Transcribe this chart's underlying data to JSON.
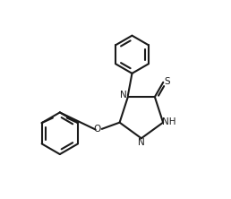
{
  "bg_color": "#ffffff",
  "line_color": "#1a1a1a",
  "line_width": 1.5,
  "fig_width": 2.58,
  "fig_height": 2.22,
  "dpi": 100,
  "font_size": 7.5,
  "xlim": [
    0.0,
    1.0
  ],
  "ylim": [
    0.0,
    1.0
  ]
}
